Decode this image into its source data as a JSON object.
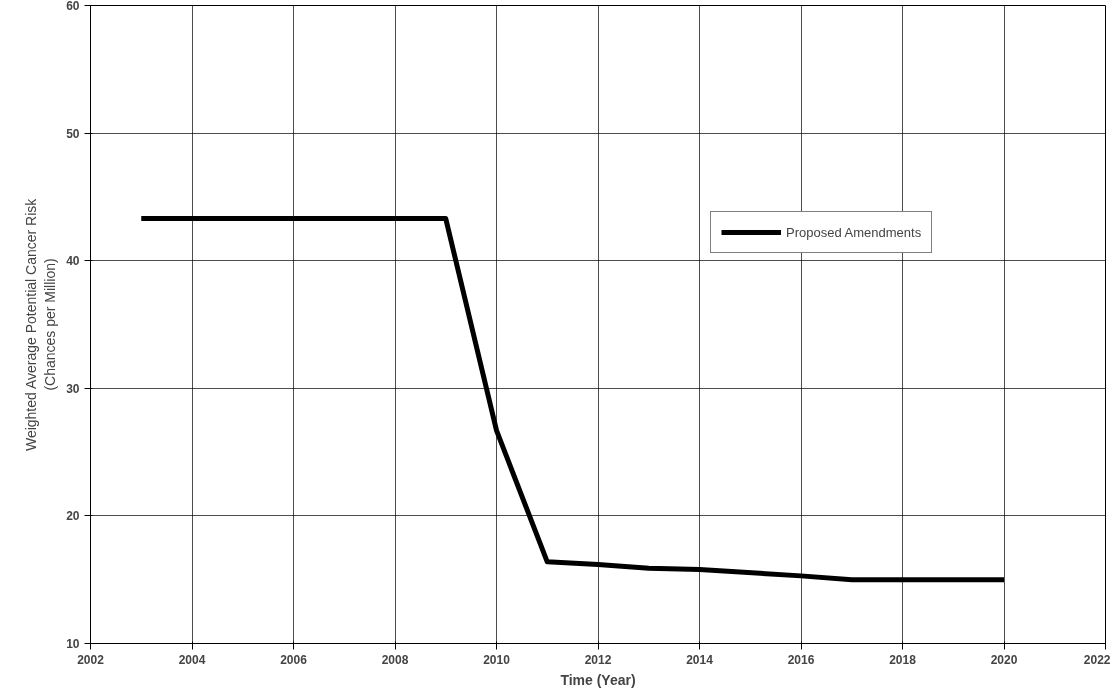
{
  "chart_data": {
    "type": "line",
    "xlabel": "Time (Year)",
    "ylabel": "Weighted Average Potential Cancer Risk\n(Chances per Million)",
    "x": [
      2003,
      2009,
      2010,
      2011,
      2012,
      2013,
      2014,
      2016,
      2017,
      2018,
      2020
    ],
    "series": [
      {
        "name": "Proposed Amendments",
        "color": "#000000",
        "values": [
          43.3,
          43.3,
          26.7,
          16.4,
          16.2,
          15.9,
          15.8,
          15.3,
          15.0,
          15.0,
          15.0
        ]
      }
    ],
    "xlim": [
      2002,
      2022
    ],
    "xticks": [
      2002,
      2004,
      2006,
      2008,
      2010,
      2012,
      2014,
      2016,
      2018,
      2020,
      2022
    ],
    "ylim": [
      10,
      60
    ],
    "yticks": [
      10,
      20,
      30,
      40,
      50,
      60
    ],
    "grid": true,
    "legend": "right",
    "marker": "none",
    "line_style": "solid"
  }
}
